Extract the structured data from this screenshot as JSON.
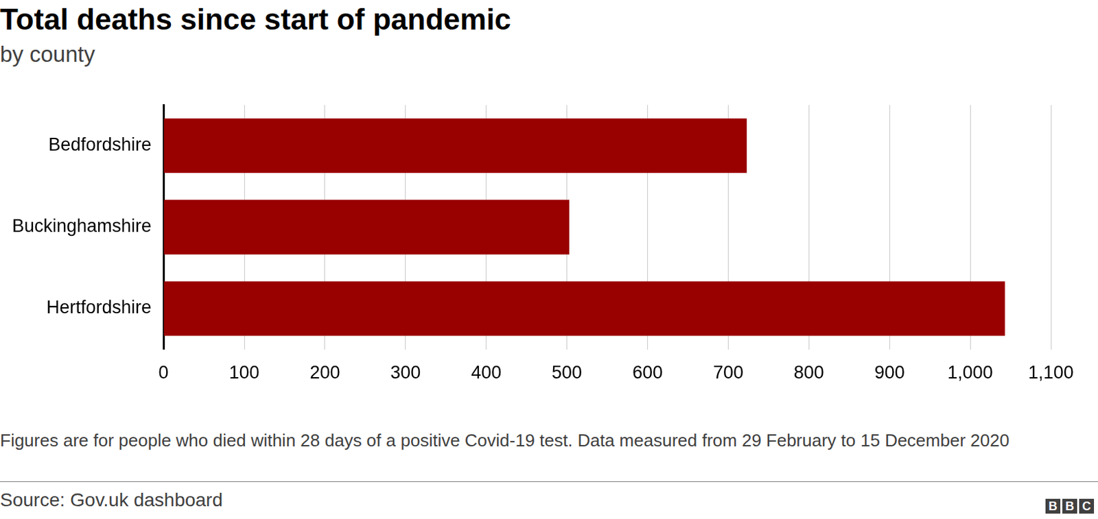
{
  "chart_data": {
    "type": "bar",
    "orientation": "horizontal",
    "title": "Total deaths since start of pandemic",
    "subtitle": "by county",
    "categories": [
      "Bedfordshire",
      "Buckinghamshire",
      "Hertfordshire"
    ],
    "values": [
      723,
      503,
      1043
    ],
    "color": "#990000",
    "xlim": [
      0,
      1100
    ],
    "xticks": [
      0,
      100,
      200,
      300,
      400,
      500,
      600,
      700,
      800,
      900,
      {
        "value": 1000,
        "label": "1,000"
      },
      {
        "value": 1100,
        "label": "1,100"
      }
    ],
    "grid": true,
    "note": "Figures are for people who died within 28 days of a positive Covid-19 test. Data measured from 29 February to 15 December 2020",
    "source": "Source: Gov.uk dashboard",
    "logo": "BBC"
  }
}
